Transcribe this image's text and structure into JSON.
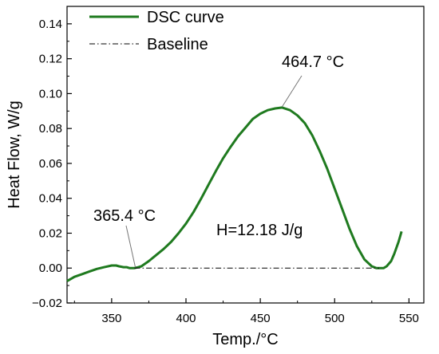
{
  "chart_data": {
    "type": "line",
    "xlabel": "Temp./°C",
    "ylabel": "Heat Flow, W/g",
    "xlim": [
      320,
      560
    ],
    "ylim": [
      -0.02,
      0.15
    ],
    "xticks": [
      {
        "value": 350,
        "label": "350"
      },
      {
        "value": 400,
        "label": "400"
      },
      {
        "value": 450,
        "label": "450"
      },
      {
        "value": 500,
        "label": "500"
      },
      {
        "value": 550,
        "label": "550"
      }
    ],
    "yticks": [
      {
        "value": -0.02,
        "label": "−0.02"
      },
      {
        "value": 0.0,
        "label": "0.00"
      },
      {
        "value": 0.02,
        "label": "0.02"
      },
      {
        "value": 0.04,
        "label": "0.04"
      },
      {
        "value": 0.06,
        "label": "0.06"
      },
      {
        "value": 0.08,
        "label": "0.08"
      },
      {
        "value": 0.1,
        "label": "0.10"
      },
      {
        "value": 0.12,
        "label": "0.12"
      },
      {
        "value": 0.14,
        "label": "0.14"
      }
    ],
    "legend_position": "top-left",
    "series": [
      {
        "name": "DSC curve",
        "color": "#1f7a1f",
        "style": "solid",
        "x": [
          320,
          325,
          330,
          335,
          340,
          345,
          350,
          353,
          355,
          358,
          360,
          362,
          365.4,
          368,
          370,
          375,
          380,
          385,
          390,
          395,
          400,
          405,
          410,
          415,
          420,
          425,
          430,
          435,
          440,
          445,
          450,
          455,
          460,
          464.7,
          470,
          475,
          480,
          485,
          490,
          495,
          500,
          505,
          510,
          515,
          520,
          525,
          528,
          530,
          533,
          535,
          538,
          540,
          543,
          545
        ],
        "y": [
          -0.0075,
          -0.005,
          -0.0035,
          -0.002,
          -0.0005,
          0.0005,
          0.0015,
          0.0015,
          0.001,
          0.0005,
          0.0005,
          0.0,
          0.0,
          0.0005,
          0.001,
          0.004,
          0.0075,
          0.011,
          0.015,
          0.02,
          0.0255,
          0.032,
          0.0395,
          0.0475,
          0.0555,
          0.063,
          0.0695,
          0.0755,
          0.0805,
          0.0855,
          0.0885,
          0.0905,
          0.0915,
          0.092,
          0.0905,
          0.0875,
          0.083,
          0.076,
          0.067,
          0.057,
          0.0455,
          0.034,
          0.0225,
          0.0125,
          0.005,
          0.001,
          0.0,
          0.0,
          0.0,
          0.001,
          0.004,
          0.008,
          0.015,
          0.021
        ]
      },
      {
        "name": "Baseline",
        "color": "#000000",
        "style": "dash-dot",
        "x": [
          365.4,
          530
        ],
        "y": [
          0.0,
          0.0
        ]
      }
    ],
    "annotations": [
      {
        "text": "464.7 °C",
        "x": 464.7,
        "y": 0.092
      },
      {
        "text": "365.4 °C",
        "x": 365.4,
        "y": 0.0
      },
      {
        "text": "H=12.18 J/g"
      }
    ]
  }
}
